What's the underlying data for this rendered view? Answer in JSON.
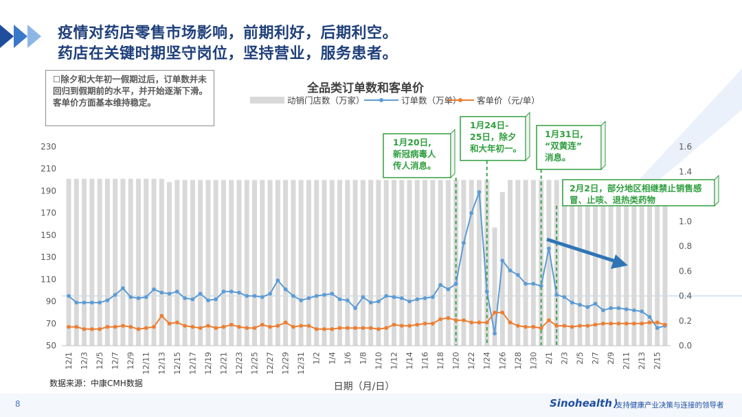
{
  "title_line1": "疫情对药店零售市场影响，前期利好，后期利空。",
  "title_line2": "药店在关键时期坚守岗位，坚持营业，服务患者。",
  "note": "除夕和大年初一假期过后，订单数并未回归到假期前的水平，并开始逐渐下滑。客单价方面基本维持稳定。",
  "note_bullet": "☐",
  "source": "数据来源：中康CMH数据",
  "page_number": "8",
  "brand": "Sinohealth",
  "tagline": "支持健康产业决策与连接的领导者",
  "colors": {
    "title": "#1e3f7a",
    "bars": "#d9d9d9",
    "orders": "#5b9bd5",
    "avg_price": "#ed7d31",
    "callout": "#2e9e3e",
    "arrow": "#2f75b5"
  },
  "callouts": [
    {
      "text": [
        "1月20日,",
        "新冠病毒人",
        "传人消息。"
      ],
      "date": "1/20"
    },
    {
      "text": [
        "1月24日-",
        "25日，除夕",
        "和大年初一。"
      ],
      "date": "1/24"
    },
    {
      "text": [
        "1月31日,",
        "“双黄连”",
        "消息。"
      ],
      "date": "1/31"
    },
    {
      "text": [
        "2月2日，部分地区相继禁止销售感",
        "冒、止咳、退热类药物"
      ],
      "date": "2/2"
    }
  ],
  "chart_data": {
    "type": "bar+line",
    "title": "全品类订单数和客单价",
    "xlabel": "日期（月/日）",
    "ylabel_left": "",
    "ylabel_right": "",
    "ylim_left": [
      50,
      230
    ],
    "yticks_left": [
      "230",
      "210",
      "190",
      "170",
      "150",
      "130",
      "110",
      "90",
      "70",
      "50"
    ],
    "ylim_right": [
      0,
      1.6
    ],
    "yticks_right": [
      "1.6",
      "1.4",
      "1.2",
      "1.0",
      "0.8",
      "0.6",
      "0.4",
      "0.2",
      "0.0"
    ],
    "legend": [
      "动销门店数（万家）",
      "订单数（万单）",
      "客单价（元/单）"
    ],
    "legend_position": "top",
    "categories": [
      "12/1",
      "12/2",
      "12/3",
      "12/4",
      "12/5",
      "12/6",
      "12/7",
      "12/8",
      "12/9",
      "12/10",
      "12/11",
      "12/12",
      "12/13",
      "12/14",
      "12/15",
      "12/16",
      "12/17",
      "12/18",
      "12/19",
      "12/20",
      "12/21",
      "12/22",
      "12/23",
      "12/24",
      "12/25",
      "12/26",
      "12/27",
      "12/28",
      "12/29",
      "12/30",
      "12/31",
      "1/1",
      "1/2",
      "1/3",
      "1/4",
      "1/5",
      "1/6",
      "1/7",
      "1/8",
      "1/9",
      "1/10",
      "1/11",
      "1/12",
      "1/13",
      "1/14",
      "1/15",
      "1/16",
      "1/17",
      "1/18",
      "1/19",
      "1/20",
      "1/21",
      "1/22",
      "1/23",
      "1/24",
      "1/25",
      "1/26",
      "1/27",
      "1/28",
      "1/29",
      "1/30",
      "1/31",
      "2/1",
      "2/2",
      "2/3",
      "2/4",
      "2/5",
      "2/6",
      "2/7",
      "2/8",
      "2/9",
      "2/10",
      "2/11",
      "2/12",
      "2/13",
      "2/14",
      "2/15",
      "2/16"
    ],
    "x_tick_labels": [
      "12/1",
      "12/3",
      "12/5",
      "12/7",
      "12/9",
      "12/11",
      "12/13",
      "12/15",
      "12/17",
      "12/19",
      "12/21",
      "12/23",
      "12/25",
      "12/27",
      "12/29",
      "12/31",
      "1/2",
      "1/4",
      "1/6",
      "1/8",
      "1/10",
      "1/12",
      "1/14",
      "1/16",
      "1/18",
      "1/20",
      "1/22",
      "1/24",
      "1/26",
      "1/28",
      "1/30",
      "2/1",
      "2/3",
      "2/5",
      "2/7",
      "2/9",
      "2/11",
      "2/13",
      "2/15"
    ],
    "series": [
      {
        "name": "动销门店数（万家）",
        "type": "bar",
        "axis": "left",
        "values": [
          201,
          201,
          201,
          201,
          201,
          201,
          201,
          201,
          201,
          201,
          201,
          201,
          201,
          198,
          200,
          200,
          200,
          200,
          200,
          200,
          200,
          200,
          200,
          200,
          200,
          200,
          200,
          200,
          200,
          200,
          200,
          200,
          200,
          200,
          200,
          200,
          200,
          200,
          200,
          200,
          200,
          200,
          200,
          200,
          200,
          200,
          200,
          200,
          200,
          200,
          200,
          200,
          200,
          200,
          200,
          157,
          189,
          200,
          200,
          200,
          200,
          200,
          200,
          200,
          200,
          200,
          200,
          200,
          200,
          200,
          200,
          200,
          200,
          200,
          200,
          200,
          200,
          200
        ]
      },
      {
        "name": "订单数（万单）",
        "type": "line",
        "axis": "left",
        "values": [
          95,
          89,
          89,
          89,
          89,
          91,
          96,
          102,
          94,
          93,
          94,
          101,
          98,
          97,
          99,
          93,
          92,
          97,
          91,
          92,
          99,
          99,
          98,
          95,
          95,
          94,
          97,
          109,
          101,
          95,
          91,
          93,
          95,
          96,
          97,
          92,
          91,
          84,
          94,
          89,
          90,
          95,
          94,
          93,
          90,
          92,
          93,
          94,
          105,
          101,
          106,
          143,
          170,
          189,
          99,
          61,
          127,
          118,
          114,
          106,
          106,
          104,
          138,
          96,
          94,
          89,
          87,
          85,
          88,
          82,
          84,
          84,
          83,
          82,
          81,
          76,
          66,
          68
        ]
      },
      {
        "name": "客单价（元/单）",
        "type": "line",
        "axis": "left",
        "values": [
          67,
          67,
          65,
          65,
          65,
          67,
          67,
          68,
          67,
          65,
          66,
          67,
          77,
          70,
          71,
          68,
          67,
          66,
          68,
          66,
          67,
          69,
          67,
          66,
          66,
          69,
          67,
          68,
          71,
          67,
          68,
          68,
          65,
          65,
          65,
          66,
          66,
          66,
          66,
          66,
          65,
          66,
          69,
          68,
          68,
          69,
          70,
          70,
          74,
          75,
          73,
          73,
          71,
          71,
          71,
          80,
          80,
          71,
          68,
          67,
          67,
          66,
          73,
          68,
          68,
          67,
          68,
          68,
          69,
          70,
          70,
          70,
          70,
          70,
          70,
          71,
          71,
          69
        ]
      }
    ]
  }
}
